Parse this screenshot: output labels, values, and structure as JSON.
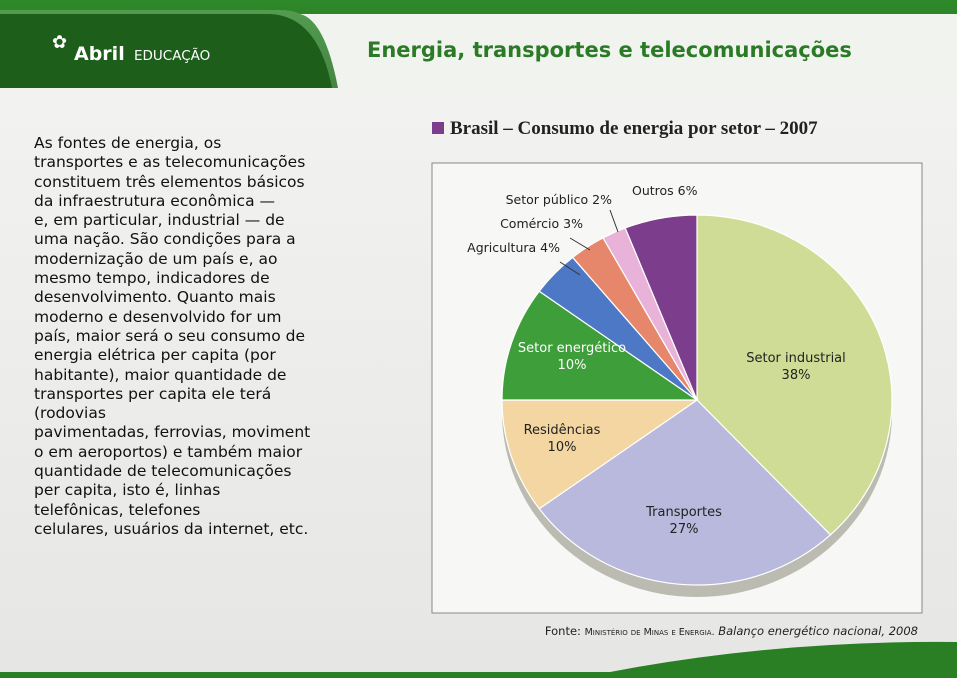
{
  "header": {
    "logo_brand": "Abril",
    "logo_sub": "EDUCAÇÃO",
    "title": "Energia, transportes e telecomunicações"
  },
  "paragraph": [
    "As fontes de energia, os",
    "transportes e as telecomunicações",
    "constituem três elementos básicos",
    "da infraestrutura econômica —",
    "e, em particular, industrial — de",
    "uma nação. São condições para a",
    "modernização de um país e, ao",
    "mesmo tempo, indicadores de",
    "desenvolvimento. Quanto mais",
    "moderno e desenvolvido for um",
    "país, maior será o seu consumo de",
    "energia elétrica per capita (por",
    "habitante), maior quantidade de",
    "transportes per capita ele terá",
    "(rodovias",
    "pavimentadas, ferrovias, moviment",
    "o em aeroportos) e também maior",
    "quantidade de telecomunicações",
    "per capita, isto é, linhas",
    "telefônicas, telefones",
    "celulares, usuários da internet, etc."
  ],
  "chart_data": {
    "type": "pie",
    "title": "Brasil – Consumo de energia por setor – 2007",
    "categories": [
      "Setor industrial",
      "Transportes",
      "Residências",
      "Setor energético",
      "Agricultura",
      "Comércio",
      "Setor público",
      "Outros"
    ],
    "values": [
      38,
      27,
      10,
      10,
      4,
      3,
      2,
      6
    ],
    "value_labels": [
      "38%",
      "27%",
      "10%",
      "10%",
      "4%",
      "3%",
      "2%",
      "6%"
    ],
    "colors": [
      "#cfdc95",
      "#b9b9dd",
      "#f3d6a2",
      "#3e9e3a",
      "#4c78c6",
      "#e6866a",
      "#e9b3d9",
      "#7b3d8c"
    ]
  },
  "source": {
    "prefix": "Fonte:",
    "author": "Ministério de Minas e Energia.",
    "work": "Balanço energético nacional, 2008"
  }
}
